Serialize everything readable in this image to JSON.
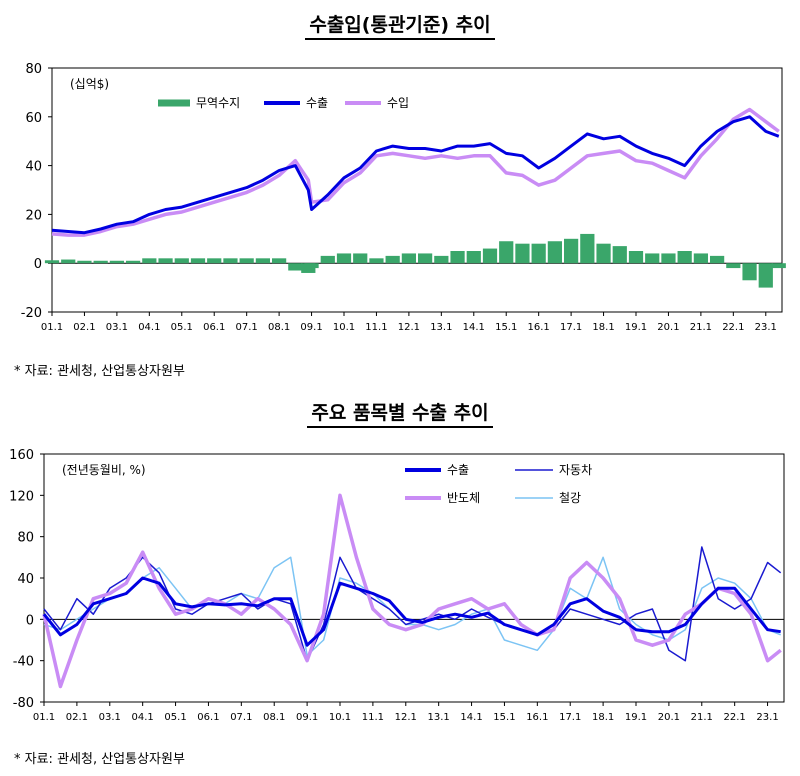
{
  "source_note": "* 자료: 관세청, 산업통상자원부",
  "chart_data": [
    {
      "type": "line",
      "title": "수출입(통관기준) 추이",
      "unit_label": "(십억$)",
      "ylim": [
        -20,
        80
      ],
      "yticks": [
        "80",
        "60",
        "40",
        "20",
        "0",
        "-20"
      ],
      "xticks": [
        "01.1",
        "02.1",
        "03.1",
        "04.1",
        "05.1",
        "06.1",
        "07.1",
        "08.1",
        "09.1",
        "10.1",
        "11.1",
        "12.1",
        "13.1",
        "14.1",
        "15.1",
        "16.1",
        "17.1",
        "18.1",
        "19.1",
        "20.1",
        "21.1",
        "22.1",
        "23.1"
      ],
      "legend": [
        "무역수지",
        "수출",
        "수입"
      ],
      "colors": {
        "trade_balance": "#3aa66a",
        "export": "#0000e0",
        "import": "#c98cf5"
      },
      "x_range": [
        2001.0,
        2023.5
      ],
      "series": [
        {
          "name": "수출",
          "x": [
            2001,
            2001.5,
            2002,
            2002.5,
            2003,
            2003.5,
            2004,
            2004.5,
            2005,
            2005.5,
            2006,
            2006.5,
            2007,
            2007.5,
            2008,
            2008.5,
            2008.9,
            2009,
            2009.5,
            2010,
            2010.5,
            2011,
            2011.5,
            2012,
            2012.5,
            2013,
            2013.5,
            2014,
            2014.5,
            2015,
            2015.5,
            2016,
            2016.5,
            2017,
            2017.5,
            2018,
            2018.5,
            2019,
            2019.5,
            2020,
            2020.5,
            2021,
            2021.5,
            2022,
            2022.5,
            2023,
            2023.4
          ],
          "values": [
            13.5,
            13,
            12.5,
            14,
            16,
            17,
            20,
            22,
            23,
            25,
            27,
            29,
            31,
            34,
            38,
            40,
            30,
            22,
            28,
            35,
            39,
            46,
            48,
            47,
            47,
            46,
            48,
            48,
            49,
            45,
            44,
            39,
            43,
            48,
            53,
            51,
            52,
            48,
            45,
            43,
            40,
            48,
            54,
            58,
            60,
            54,
            52
          ]
        },
        {
          "name": "수입",
          "x": [
            2001,
            2001.5,
            2002,
            2002.5,
            2003,
            2003.5,
            2004,
            2004.5,
            2005,
            2005.5,
            2006,
            2006.5,
            2007,
            2007.5,
            2008,
            2008.5,
            2008.9,
            2009,
            2009.5,
            2010,
            2010.5,
            2011,
            2011.5,
            2012,
            2012.5,
            2013,
            2013.5,
            2014,
            2014.5,
            2015,
            2015.5,
            2016,
            2016.5,
            2017,
            2017.5,
            2018,
            2018.5,
            2019,
            2019.5,
            2020,
            2020.5,
            2021,
            2021.5,
            2022,
            2022.5,
            2023,
            2023.4
          ],
          "values": [
            12,
            11.5,
            11.5,
            13,
            15,
            16,
            18,
            20,
            21,
            23,
            25,
            27,
            29,
            32,
            36,
            42,
            34,
            25,
            26,
            33,
            37,
            44,
            45,
            44,
            43,
            44,
            43,
            44,
            44,
            37,
            36,
            32,
            34,
            39,
            44,
            45,
            46,
            42,
            41,
            38,
            35,
            44,
            51,
            59,
            63,
            58,
            54
          ]
        },
        {
          "name": "무역수지",
          "x": [
            2001,
            2001.5,
            2002,
            2002.5,
            2003,
            2003.5,
            2004,
            2004.5,
            2005,
            2005.5,
            2006,
            2006.5,
            2007,
            2007.5,
            2008,
            2008.5,
            2008.9,
            2009,
            2009.5,
            2010,
            2010.5,
            2011,
            2011.5,
            2012,
            2012.5,
            2013,
            2013.5,
            2014,
            2014.5,
            2015,
            2015.5,
            2016,
            2016.5,
            2017,
            2017.5,
            2018,
            2018.5,
            2019,
            2019.5,
            2020,
            2020.5,
            2021,
            2021.5,
            2022,
            2022.5,
            2023,
            2023.4
          ],
          "values": [
            1.2,
            1.5,
            1,
            1,
            1,
            1,
            2,
            2,
            2,
            2,
            2,
            2,
            2,
            2,
            2,
            -3,
            -4,
            -2,
            3,
            4,
            4,
            2,
            3,
            4,
            4,
            3,
            5,
            5,
            6,
            9,
            8,
            8,
            9,
            10,
            12,
            8,
            7,
            5,
            4,
            4,
            5,
            4,
            3,
            -2,
            -7,
            -10,
            -2
          ]
        }
      ]
    },
    {
      "type": "line",
      "title": "주요 품목별 수출 추이",
      "unit_label": "(전년동월비, %)",
      "ylim": [
        -80,
        160
      ],
      "yticks": [
        "160",
        "120",
        "80",
        "40",
        "0",
        "-40",
        "-80"
      ],
      "xticks": [
        "01.1",
        "02.1",
        "03.1",
        "04.1",
        "05.1",
        "06.1",
        "07.1",
        "08.1",
        "09.1",
        "10.1",
        "11.1",
        "12.1",
        "13.1",
        "14.1",
        "15.1",
        "16.1",
        "17.1",
        "18.1",
        "19.1",
        "20.1",
        "21.1",
        "22.1",
        "23.1"
      ],
      "legend": [
        "수출",
        "자동차",
        "반도체",
        "철강"
      ],
      "colors": {
        "export": "#0000e0",
        "auto": "#1a1ad0",
        "semi": "#c98cf5",
        "steel": "#7cc4f4"
      },
      "x_range": [
        2001.0,
        2023.5
      ],
      "series": [
        {
          "name": "수출",
          "x": [
            2001,
            2001.5,
            2002,
            2002.5,
            2003,
            2003.5,
            2004,
            2004.5,
            2005,
            2005.5,
            2006,
            2006.5,
            2007,
            2007.5,
            2008,
            2008.5,
            2009,
            2009.5,
            2010,
            2010.5,
            2011,
            2011.5,
            2012,
            2012.5,
            2013,
            2013.5,
            2014,
            2014.5,
            2015,
            2015.5,
            2016,
            2016.5,
            2017,
            2017.5,
            2018,
            2018.5,
            2019,
            2019.5,
            2020,
            2020.5,
            2021,
            2021.5,
            2022,
            2022.5,
            2023,
            2023.4
          ],
          "values": [
            5,
            -15,
            -5,
            15,
            20,
            25,
            40,
            35,
            15,
            12,
            15,
            14,
            15,
            13,
            20,
            20,
            -25,
            -10,
            35,
            30,
            25,
            18,
            0,
            -3,
            2,
            5,
            2,
            6,
            -5,
            -10,
            -15,
            -5,
            15,
            20,
            8,
            2,
            -10,
            -12,
            -12,
            -5,
            15,
            30,
            30,
            10,
            -10,
            -12
          ]
        },
        {
          "name": "자동차",
          "x": [
            2001,
            2001.5,
            2002,
            2002.5,
            2003,
            2003.5,
            2004,
            2004.5,
            2005,
            2005.5,
            2006,
            2006.5,
            2007,
            2007.5,
            2008,
            2008.5,
            2009,
            2009.5,
            2010,
            2010.5,
            2011,
            2011.5,
            2012,
            2012.5,
            2013,
            2013.5,
            2014,
            2014.5,
            2015,
            2015.5,
            2016,
            2016.5,
            2017,
            2017.5,
            2018,
            2018.5,
            2019,
            2019.5,
            2020,
            2020.5,
            2021,
            2021.5,
            2022,
            2022.5,
            2023,
            2023.4
          ],
          "values": [
            10,
            -10,
            20,
            5,
            30,
            40,
            60,
            45,
            10,
            5,
            15,
            20,
            25,
            10,
            20,
            15,
            -40,
            -5,
            60,
            30,
            20,
            10,
            -5,
            0,
            5,
            0,
            10,
            2,
            -5,
            -10,
            -15,
            -10,
            10,
            5,
            0,
            -5,
            5,
            10,
            -30,
            -40,
            70,
            20,
            10,
            20,
            55,
            45
          ]
        },
        {
          "name": "반도체",
          "x": [
            2001,
            2001.5,
            2002,
            2002.5,
            2003,
            2003.5,
            2004,
            2004.5,
            2005,
            2005.5,
            2006,
            2006.5,
            2007,
            2007.5,
            2008,
            2008.5,
            2009,
            2009.5,
            2010,
            2010.5,
            2011,
            2011.5,
            2012,
            2012.5,
            2013,
            2013.5,
            2014,
            2014.5,
            2015,
            2015.5,
            2016,
            2016.5,
            2017,
            2017.5,
            2018,
            2018.5,
            2019,
            2019.5,
            2020,
            2020.5,
            2021,
            2021.5,
            2022,
            2022.5,
            2023,
            2023.4
          ],
          "values": [
            5,
            -65,
            -20,
            20,
            25,
            35,
            65,
            30,
            5,
            10,
            20,
            15,
            5,
            20,
            10,
            -5,
            -40,
            5,
            120,
            60,
            10,
            -5,
            -10,
            -5,
            10,
            15,
            20,
            10,
            15,
            -5,
            -15,
            -10,
            40,
            55,
            40,
            20,
            -20,
            -25,
            -20,
            5,
            15,
            30,
            25,
            5,
            -40,
            -30
          ]
        },
        {
          "name": "철강",
          "x": [
            2001,
            2001.5,
            2002,
            2002.5,
            2003,
            2003.5,
            2004,
            2004.5,
            2005,
            2005.5,
            2006,
            2006.5,
            2007,
            2007.5,
            2008,
            2008.5,
            2009,
            2009.5,
            2010,
            2010.5,
            2011,
            2011.5,
            2012,
            2012.5,
            2013,
            2013.5,
            2014,
            2014.5,
            2015,
            2015.5,
            2016,
            2016.5,
            2017,
            2017.5,
            2018,
            2018.5,
            2019,
            2019.5,
            2020,
            2020.5,
            2021,
            2021.5,
            2022,
            2022.5,
            2023,
            2023.4
          ],
          "values": [
            -5,
            -10,
            0,
            10,
            20,
            25,
            40,
            50,
            30,
            10,
            20,
            15,
            25,
            20,
            50,
            60,
            -35,
            -20,
            40,
            35,
            25,
            10,
            -5,
            -5,
            -10,
            -5,
            5,
            10,
            -20,
            -25,
            -30,
            -10,
            30,
            20,
            60,
            10,
            -5,
            -15,
            -20,
            -10,
            30,
            40,
            35,
            20,
            -10,
            -15
          ]
        }
      ]
    }
  ]
}
